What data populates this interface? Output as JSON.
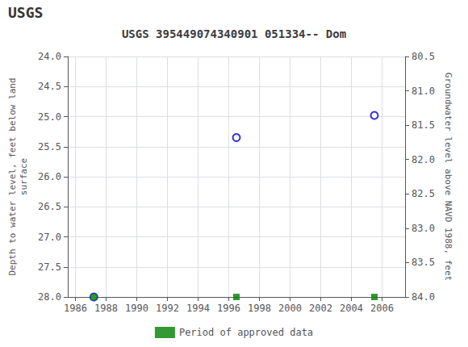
{
  "chart_data": {
    "type": "scatter",
    "title": "USGS 395449074340901 051334-- Dom",
    "annotations": [
      "USGS"
    ],
    "y_label": "Depth to water level, feet below land\nsurface",
    "y2_label": "Groundwater level above NAVD 1988, feet",
    "x": [
      1987.2,
      1996.5,
      2005.5
    ],
    "series": [
      {
        "values": [
          28.0,
          25.35,
          24.98
        ],
        "color": "#0000cc",
        "marker": "open_circle"
      },
      {
        "name": "Period of approved data",
        "values": [
          28.0,
          28.0,
          28.0
        ],
        "color": "#008000",
        "marker": "square"
      }
    ],
    "xlim": [
      1985.5,
      2007.5
    ],
    "xticks": [
      1986,
      1988,
      1990,
      1992,
      1994,
      1996,
      1998,
      2000,
      2002,
      2004,
      2006
    ],
    "ylim": [
      28.0,
      24.0
    ],
    "yticks": [
      {
        "value": 24.0,
        "label": "24.0"
      },
      24.5,
      {
        "value": 25.0,
        "label": "25.0"
      },
      25.5,
      {
        "value": 26.0,
        "label": "26.0"
      },
      26.5,
      {
        "value": 27.0,
        "label": "27.0"
      },
      27.5,
      {
        "value": 28.0,
        "label": "28.0"
      }
    ],
    "y2lim": [
      84.0,
      80.5
    ],
    "y2ticks": [
      {
        "value": 84.0,
        "label": "84.0"
      },
      83.5,
      {
        "value": 83.0,
        "label": "83.0"
      },
      82.5,
      {
        "value": 82.0,
        "label": "82.0"
      },
      81.5,
      {
        "value": 81.0,
        "label": "81.0"
      },
      80.5
    ],
    "grid": true,
    "legend": "bottom"
  }
}
